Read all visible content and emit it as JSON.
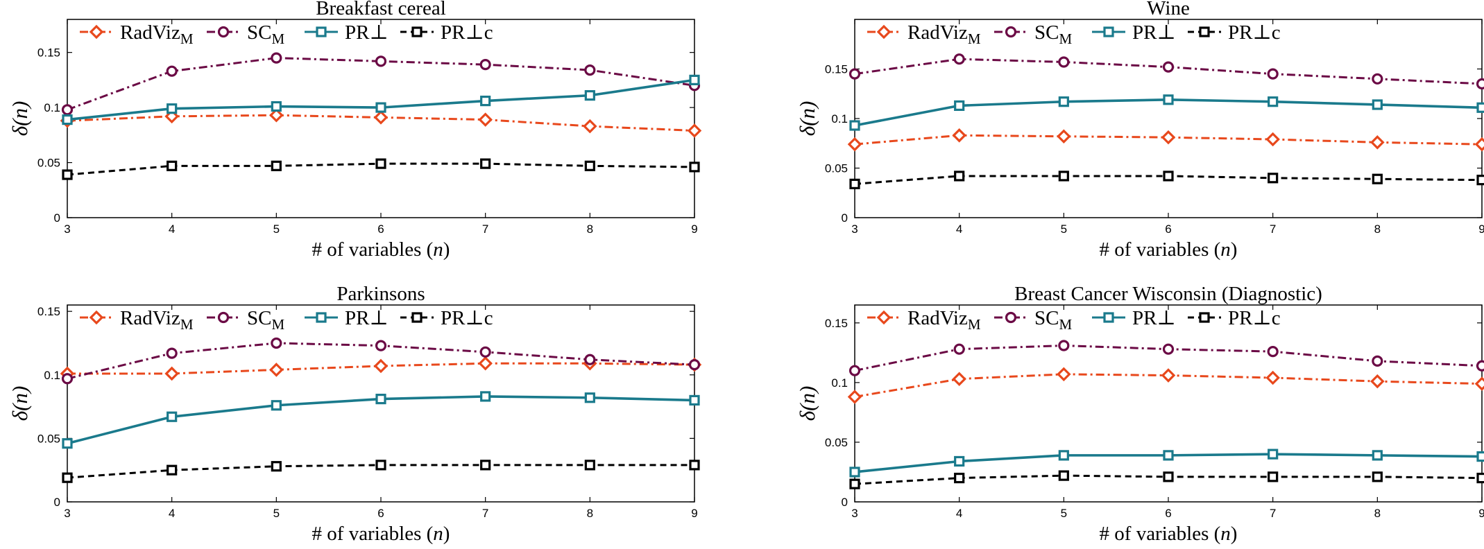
{
  "colors": {
    "RadViz_M": "#e8481c",
    "SC_M": "#6b0a45",
    "PR_perp": "#1a7a8c",
    "PR_perp_c": "#000000"
  },
  "legend": [
    {
      "key": "RadViz_M",
      "label": "RadViz",
      "sub": "M",
      "marker": "diamond",
      "dash": "12,5,3,5"
    },
    {
      "key": "SC_M",
      "label": "SC",
      "sub": "M",
      "marker": "circle",
      "dash": "12,5,3,5"
    },
    {
      "key": "PR_perp",
      "label": "PR⊥",
      "sub": "",
      "marker": "square",
      "dash": ""
    },
    {
      "key": "PR_perp_c",
      "label": "PR⊥c",
      "sub": "",
      "marker": "square",
      "dash": "9,6"
    }
  ],
  "chart_data": [
    {
      "type": "line",
      "title": "Breakfast cereal",
      "xlabel": "# of variables (n)",
      "ylabel": "δ(n)",
      "x": [
        3,
        4,
        5,
        6,
        7,
        8,
        9
      ],
      "xlim": [
        3,
        9
      ],
      "ylim": [
        0,
        0.18
      ],
      "yticks": [
        "0",
        "0.05",
        "0.1",
        "0.15"
      ],
      "ytick_values": [
        0,
        0.05,
        0.1,
        0.15
      ],
      "grid": false,
      "legend_position": "top",
      "series": [
        {
          "key": "RadViz_M",
          "values": [
            0.088,
            0.092,
            0.093,
            0.091,
            0.089,
            0.083,
            0.079
          ]
        },
        {
          "key": "SC_M",
          "values": [
            0.098,
            0.133,
            0.145,
            0.142,
            0.139,
            0.134,
            0.12
          ]
        },
        {
          "key": "PR_perp",
          "values": [
            0.089,
            0.099,
            0.101,
            0.1,
            0.106,
            0.111,
            0.125
          ]
        },
        {
          "key": "PR_perp_c",
          "values": [
            0.039,
            0.047,
            0.047,
            0.049,
            0.049,
            0.047,
            0.046
          ]
        }
      ]
    },
    {
      "type": "line",
      "title": "Wine",
      "xlabel": "# of variables (n)",
      "ylabel": "δ(n)",
      "x": [
        3,
        4,
        5,
        6,
        7,
        8,
        9
      ],
      "xlim": [
        3,
        9
      ],
      "ylim": [
        0,
        0.2
      ],
      "yticks": [
        "0",
        "0.05",
        "0.1",
        "0.15"
      ],
      "ytick_values": [
        0,
        0.05,
        0.1,
        0.15
      ],
      "grid": false,
      "legend_position": "top",
      "series": [
        {
          "key": "RadViz_M",
          "values": [
            0.074,
            0.083,
            0.082,
            0.081,
            0.079,
            0.076,
            0.074
          ]
        },
        {
          "key": "SC_M",
          "values": [
            0.145,
            0.16,
            0.157,
            0.152,
            0.145,
            0.14,
            0.135
          ]
        },
        {
          "key": "PR_perp",
          "values": [
            0.093,
            0.113,
            0.117,
            0.119,
            0.117,
            0.114,
            0.111
          ]
        },
        {
          "key": "PR_perp_c",
          "values": [
            0.034,
            0.042,
            0.042,
            0.042,
            0.04,
            0.039,
            0.038
          ]
        }
      ]
    },
    {
      "type": "line",
      "title": "Parkinsons",
      "xlabel": "# of variables (n)",
      "ylabel": "δ(n)",
      "x": [
        3,
        4,
        5,
        6,
        7,
        8,
        9
      ],
      "xlim": [
        3,
        9
      ],
      "ylim": [
        0,
        0.155
      ],
      "yticks": [
        "0",
        "0.05",
        "0.1",
        "0.15"
      ],
      "ytick_values": [
        0,
        0.05,
        0.1,
        0.15
      ],
      "grid": false,
      "legend_position": "top",
      "series": [
        {
          "key": "RadViz_M",
          "values": [
            0.101,
            0.101,
            0.104,
            0.107,
            0.109,
            0.109,
            0.108
          ]
        },
        {
          "key": "SC_M",
          "values": [
            0.097,
            0.117,
            0.125,
            0.123,
            0.118,
            0.112,
            0.108
          ]
        },
        {
          "key": "PR_perp",
          "values": [
            0.046,
            0.067,
            0.076,
            0.081,
            0.083,
            0.082,
            0.08
          ]
        },
        {
          "key": "PR_perp_c",
          "values": [
            0.019,
            0.025,
            0.028,
            0.029,
            0.029,
            0.029,
            0.029
          ]
        }
      ]
    },
    {
      "type": "line",
      "title": "Breast Cancer Wisconsin (Diagnostic)",
      "xlabel": "# of variables (n)",
      "ylabel": "δ(n)",
      "x": [
        3,
        4,
        5,
        6,
        7,
        8,
        9
      ],
      "xlim": [
        3,
        9
      ],
      "ylim": [
        0,
        0.165
      ],
      "yticks": [
        "0",
        "0.05",
        "0.1",
        "0.15"
      ],
      "ytick_values": [
        0,
        0.05,
        0.1,
        0.15
      ],
      "grid": false,
      "legend_position": "top",
      "series": [
        {
          "key": "RadViz_M",
          "values": [
            0.088,
            0.103,
            0.107,
            0.106,
            0.104,
            0.101,
            0.099
          ]
        },
        {
          "key": "SC_M",
          "values": [
            0.11,
            0.128,
            0.131,
            0.128,
            0.126,
            0.118,
            0.114
          ]
        },
        {
          "key": "PR_perp",
          "values": [
            0.025,
            0.034,
            0.039,
            0.039,
            0.04,
            0.039,
            0.038
          ]
        },
        {
          "key": "PR_perp_c",
          "values": [
            0.015,
            0.02,
            0.022,
            0.021,
            0.021,
            0.021,
            0.02
          ]
        }
      ]
    }
  ]
}
